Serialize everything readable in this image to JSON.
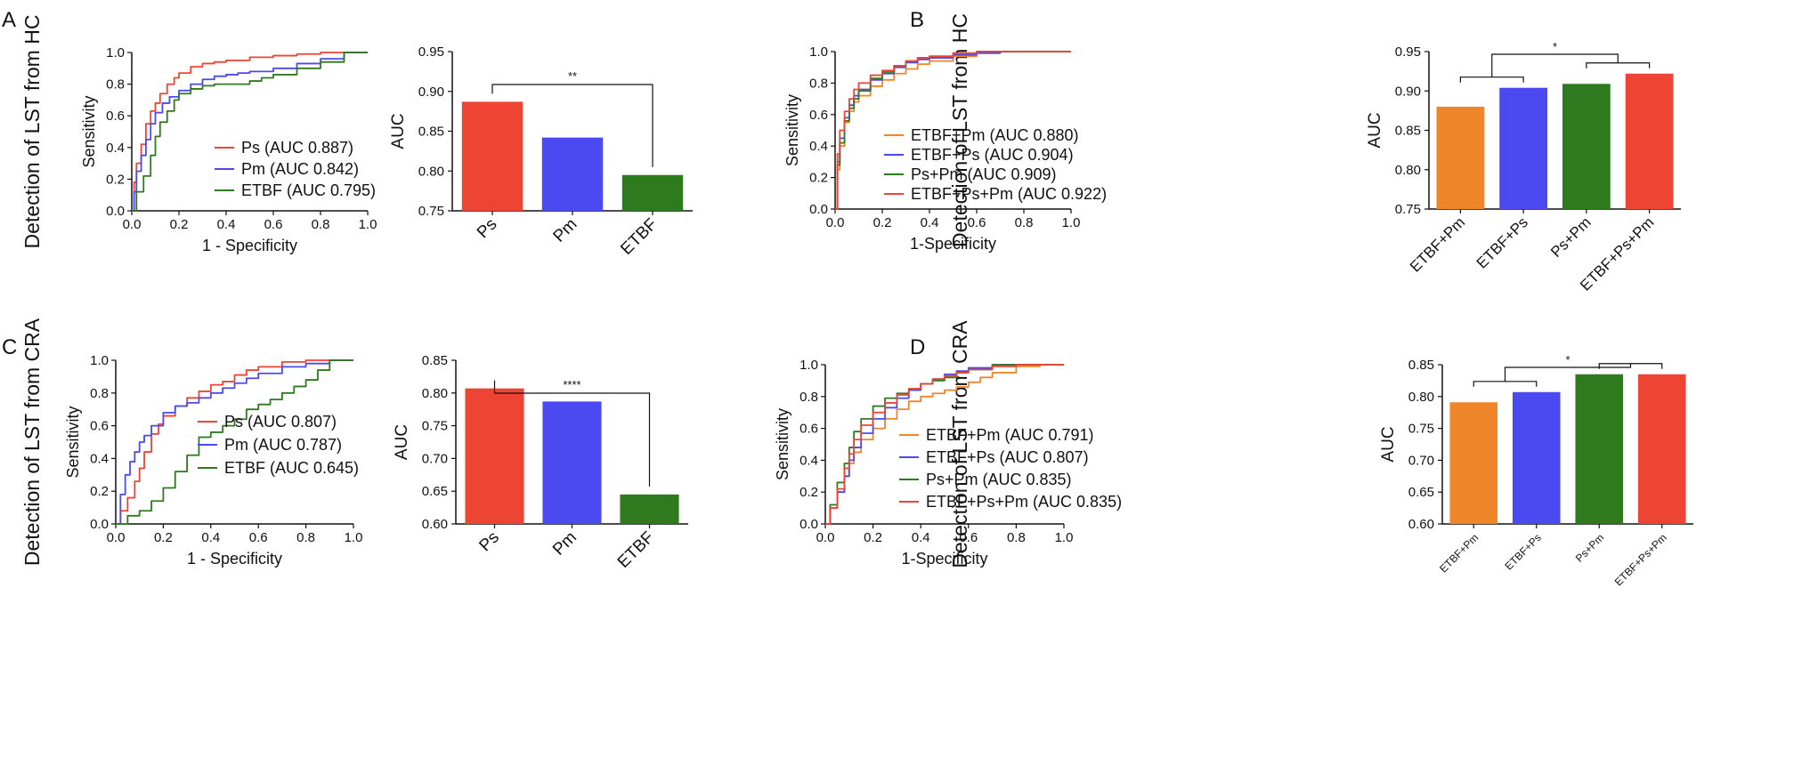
{
  "panels": [
    {
      "label": "A",
      "row_title": "Detection of LST from HC",
      "roc": {
        "type": "line",
        "xlabel": "1 - Specificity",
        "ylabel": "Sensitivity",
        "xlim": [
          0,
          1
        ],
        "ylim": [
          0,
          1
        ],
        "ticks": [
          "0.0",
          "0.2",
          "0.4",
          "0.6",
          "0.8",
          "1.0"
        ],
        "series": [
          {
            "name": "Ps (AUC 0.887)",
            "color": "#ee4433",
            "x": [
              0,
              0.01,
              0.02,
              0.04,
              0.06,
              0.08,
              0.1,
              0.12,
              0.15,
              0.18,
              0.2,
              0.25,
              0.3,
              0.35,
              0.4,
              0.5,
              0.6,
              0.7,
              0.8,
              0.9,
              1
            ],
            "y": [
              0,
              0.18,
              0.3,
              0.42,
              0.55,
              0.63,
              0.68,
              0.74,
              0.8,
              0.84,
              0.87,
              0.91,
              0.93,
              0.94,
              0.95,
              0.97,
              0.98,
              0.99,
              1,
              1,
              1
            ]
          },
          {
            "name": "Pm (AUC 0.842)",
            "color": "#4a4af0",
            "x": [
              0,
              0.01,
              0.02,
              0.04,
              0.06,
              0.08,
              0.1,
              0.13,
              0.16,
              0.2,
              0.25,
              0.3,
              0.35,
              0.4,
              0.45,
              0.5,
              0.6,
              0.7,
              0.8,
              0.9,
              1
            ],
            "y": [
              0,
              0.12,
              0.25,
              0.35,
              0.45,
              0.55,
              0.62,
              0.68,
              0.72,
              0.76,
              0.8,
              0.83,
              0.85,
              0.86,
              0.87,
              0.88,
              0.9,
              0.93,
              0.96,
              1,
              1
            ]
          },
          {
            "name": "ETBF (AUC 0.795)",
            "color": "#2f7a1f",
            "x": [
              0,
              0.02,
              0.05,
              0.08,
              0.1,
              0.12,
              0.15,
              0.18,
              0.2,
              0.25,
              0.3,
              0.35,
              0.4,
              0.45,
              0.5,
              0.55,
              0.6,
              0.7,
              0.8,
              0.9,
              1
            ],
            "y": [
              0,
              0.12,
              0.22,
              0.35,
              0.47,
              0.56,
              0.63,
              0.7,
              0.74,
              0.77,
              0.79,
              0.8,
              0.8,
              0.8,
              0.82,
              0.84,
              0.86,
              0.9,
              0.94,
              1,
              1
            ]
          }
        ]
      },
      "bar": {
        "type": "bar",
        "ylabel": "AUC",
        "ylim": [
          0.75,
          0.95
        ],
        "yticks": [
          "0.75",
          "0.80",
          "0.85",
          "0.90",
          "0.95"
        ],
        "categories": [
          "Ps",
          "Pm",
          "ETBF"
        ],
        "values": [
          0.887,
          0.842,
          0.795
        ],
        "colors": [
          "#ee4433",
          "#4a4af0",
          "#2f7a1f"
        ],
        "significance": [
          {
            "from": 0,
            "to": 2,
            "label": "**"
          }
        ]
      }
    },
    {
      "label": "B",
      "row_title": "Detection of LST from HC",
      "roc": {
        "type": "line",
        "xlabel": "1-Specificity",
        "ylabel": "Sensitivity",
        "xlim": [
          0,
          1
        ],
        "ylim": [
          0,
          1
        ],
        "ticks": [
          "0.0",
          "0.2",
          "0.4",
          "0.6",
          "0.8",
          "1.0"
        ],
        "series": [
          {
            "name": "ETBF+Pm (AUC 0.880)",
            "color": "#f0862a",
            "x": [
              0,
              0.01,
              0.02,
              0.04,
              0.06,
              0.08,
              0.1,
              0.15,
              0.2,
              0.25,
              0.3,
              0.35,
              0.4,
              0.5,
              0.6,
              0.7,
              0.8,
              0.9,
              1
            ],
            "y": [
              0,
              0.25,
              0.4,
              0.55,
              0.62,
              0.68,
              0.72,
              0.78,
              0.82,
              0.86,
              0.89,
              0.92,
              0.94,
              0.97,
              0.99,
              1,
              1,
              1,
              1
            ]
          },
          {
            "name": "ETBF+Ps (AUC 0.904)",
            "color": "#4a4af0",
            "x": [
              0,
              0.01,
              0.02,
              0.04,
              0.06,
              0.08,
              0.1,
              0.15,
              0.2,
              0.25,
              0.3,
              0.35,
              0.4,
              0.5,
              0.6,
              0.7,
              0.8,
              0.9,
              1
            ],
            "y": [
              0,
              0.3,
              0.45,
              0.58,
              0.66,
              0.72,
              0.76,
              0.82,
              0.86,
              0.9,
              0.93,
              0.95,
              0.96,
              0.98,
              0.99,
              1,
              1,
              1,
              1
            ]
          },
          {
            "name": "Ps+Pm (AUC 0.909)",
            "color": "#2f7a1f",
            "x": [
              0,
              0.01,
              0.02,
              0.04,
              0.06,
              0.08,
              0.1,
              0.15,
              0.2,
              0.25,
              0.3,
              0.35,
              0.4,
              0.5,
              0.6,
              0.7,
              0.8,
              0.9,
              1
            ],
            "y": [
              0,
              0.28,
              0.42,
              0.56,
              0.64,
              0.7,
              0.75,
              0.83,
              0.87,
              0.91,
              0.94,
              0.96,
              0.97,
              0.99,
              1,
              1,
              1,
              1,
              1
            ]
          },
          {
            "name": "ETBF+Ps+Pm (AUC 0.922)",
            "color": "#ee4433",
            "x": [
              0,
              0.01,
              0.02,
              0.04,
              0.06,
              0.08,
              0.1,
              0.15,
              0.2,
              0.25,
              0.3,
              0.35,
              0.4,
              0.5,
              0.6,
              0.7,
              0.8,
              0.9,
              1
            ],
            "y": [
              0,
              0.35,
              0.5,
              0.62,
              0.7,
              0.76,
              0.8,
              0.85,
              0.88,
              0.91,
              0.94,
              0.96,
              0.97,
              0.99,
              1,
              1,
              1,
              1,
              1
            ]
          }
        ]
      },
      "bar": {
        "type": "bar",
        "ylabel": "AUC",
        "ylim": [
          0.75,
          0.95
        ],
        "yticks": [
          "0.75",
          "0.80",
          "0.85",
          "0.90",
          "0.95"
        ],
        "categories": [
          "ETBF+Pm",
          "ETBF+Ps",
          "Ps+Pm",
          "ETBF+Ps+Pm"
        ],
        "values": [
          0.88,
          0.904,
          0.909,
          0.922
        ],
        "colors": [
          "#f0862a",
          "#4a4af0",
          "#2f7a1f",
          "#ee4433"
        ],
        "significance": [
          {
            "label": "*"
          }
        ]
      }
    },
    {
      "label": "C",
      "row_title": "Detection of LST from CRA",
      "roc": {
        "type": "line",
        "xlabel": "1 - Specificity",
        "ylabel": "Sensitivity",
        "xlim": [
          0,
          1
        ],
        "ylim": [
          0,
          1
        ],
        "ticks": [
          "0.0",
          "0.2",
          "0.4",
          "0.6",
          "0.8",
          "1.0"
        ],
        "series": [
          {
            "name": "Ps (AUC 0.807)",
            "color": "#ee4433",
            "x": [
              0,
              0.02,
              0.05,
              0.08,
              0.1,
              0.12,
              0.15,
              0.18,
              0.2,
              0.25,
              0.3,
              0.35,
              0.4,
              0.45,
              0.5,
              0.55,
              0.6,
              0.7,
              0.8,
              0.9,
              1
            ],
            "y": [
              0,
              0.08,
              0.16,
              0.26,
              0.34,
              0.44,
              0.55,
              0.61,
              0.66,
              0.72,
              0.77,
              0.81,
              0.85,
              0.87,
              0.91,
              0.94,
              0.96,
              0.99,
              1,
              1,
              1
            ]
          },
          {
            "name": "Pm (AUC 0.787)",
            "color": "#4a4af0",
            "x": [
              0,
              0.02,
              0.04,
              0.06,
              0.08,
              0.1,
              0.12,
              0.15,
              0.2,
              0.25,
              0.3,
              0.35,
              0.4,
              0.45,
              0.5,
              0.55,
              0.6,
              0.7,
              0.8,
              0.9,
              1
            ],
            "y": [
              0,
              0.18,
              0.3,
              0.38,
              0.44,
              0.5,
              0.54,
              0.6,
              0.68,
              0.72,
              0.74,
              0.77,
              0.8,
              0.83,
              0.86,
              0.89,
              0.92,
              0.96,
              0.98,
              1,
              1
            ]
          },
          {
            "name": "ETBF (AUC 0.645)",
            "color": "#2f7a1f",
            "x": [
              0,
              0.05,
              0.1,
              0.15,
              0.2,
              0.25,
              0.3,
              0.35,
              0.4,
              0.45,
              0.5,
              0.55,
              0.6,
              0.65,
              0.7,
              0.75,
              0.8,
              0.85,
              0.9,
              1
            ],
            "y": [
              0,
              0.05,
              0.08,
              0.14,
              0.22,
              0.32,
              0.42,
              0.53,
              0.56,
              0.6,
              0.64,
              0.7,
              0.73,
              0.76,
              0.8,
              0.84,
              0.88,
              0.94,
              1,
              1
            ]
          }
        ]
      },
      "bar": {
        "type": "bar",
        "ylabel": "AUC",
        "ylim": [
          0.6,
          0.85
        ],
        "yticks": [
          "0.60",
          "0.65",
          "0.70",
          "0.75",
          "0.80",
          "0.85"
        ],
        "categories": [
          "Ps",
          "Pm",
          "ETBF"
        ],
        "values": [
          0.807,
          0.787,
          0.645
        ],
        "colors": [
          "#ee4433",
          "#4a4af0",
          "#2f7a1f"
        ],
        "significance": [
          {
            "from": 0,
            "to": 2,
            "label": "****"
          }
        ]
      }
    },
    {
      "label": "D",
      "row_title": "Detection of LST from CRA",
      "roc": {
        "type": "line",
        "xlabel": "1-Specificity",
        "ylabel": "Sensitivity",
        "xlim": [
          0,
          1
        ],
        "ylim": [
          0,
          1
        ],
        "ticks": [
          "0.0",
          "0.2",
          "0.4",
          "0.6",
          "0.8",
          "1.0"
        ],
        "series": [
          {
            "name": "ETBF+Pm (AUC 0.791)",
            "color": "#f0862a",
            "x": [
              0,
              0.02,
              0.05,
              0.08,
              0.1,
              0.12,
              0.15,
              0.2,
              0.25,
              0.3,
              0.35,
              0.4,
              0.45,
              0.5,
              0.55,
              0.6,
              0.65,
              0.7,
              0.8,
              0.9,
              1
            ],
            "y": [
              0,
              0.1,
              0.2,
              0.3,
              0.38,
              0.45,
              0.53,
              0.6,
              0.66,
              0.72,
              0.77,
              0.8,
              0.82,
              0.84,
              0.86,
              0.89,
              0.92,
              0.95,
              0.99,
              1,
              1
            ]
          },
          {
            "name": "ETBF+Ps (AUC 0.807)",
            "color": "#4a4af0",
            "x": [
              0,
              0.02,
              0.05,
              0.08,
              0.1,
              0.12,
              0.15,
              0.2,
              0.25,
              0.3,
              0.35,
              0.4,
              0.45,
              0.5,
              0.55,
              0.6,
              0.7,
              0.8,
              0.9,
              1
            ],
            "y": [
              0,
              0.1,
              0.2,
              0.3,
              0.4,
              0.48,
              0.57,
              0.66,
              0.73,
              0.79,
              0.84,
              0.88,
              0.91,
              0.94,
              0.96,
              0.98,
              1,
              1,
              1,
              1
            ]
          },
          {
            "name": "Ps+Pm (AUC 0.835)",
            "color": "#2f7a1f",
            "x": [
              0,
              0.02,
              0.05,
              0.08,
              0.1,
              0.12,
              0.15,
              0.2,
              0.25,
              0.3,
              0.35,
              0.4,
              0.45,
              0.5,
              0.55,
              0.6,
              0.7,
              0.8,
              0.9,
              1
            ],
            "y": [
              0,
              0.12,
              0.26,
              0.38,
              0.48,
              0.58,
              0.66,
              0.74,
              0.79,
              0.82,
              0.85,
              0.88,
              0.9,
              0.92,
              0.95,
              0.97,
              1,
              1,
              1,
              1
            ]
          },
          {
            "name": "ETBF+Ps+Pm (AUC 0.835)",
            "color": "#ee4433",
            "x": [
              0,
              0.02,
              0.05,
              0.08,
              0.1,
              0.12,
              0.15,
              0.2,
              0.25,
              0.3,
              0.35,
              0.4,
              0.45,
              0.5,
              0.55,
              0.6,
              0.7,
              0.8,
              0.9,
              1
            ],
            "y": [
              0,
              0.1,
              0.22,
              0.35,
              0.44,
              0.53,
              0.62,
              0.7,
              0.76,
              0.81,
              0.85,
              0.88,
              0.91,
              0.93,
              0.95,
              0.97,
              0.99,
              1,
              1,
              1
            ]
          }
        ]
      },
      "bar": {
        "type": "bar",
        "ylabel": "AUC",
        "ylim": [
          0.6,
          0.85
        ],
        "yticks": [
          "0.60",
          "0.65",
          "0.70",
          "0.75",
          "0.80",
          "0.85"
        ],
        "categories": [
          "ETBF+Pm",
          "ETBF+Ps",
          "Ps+Pm",
          "ETBF+Ps+Pm"
        ],
        "values": [
          0.791,
          0.807,
          0.835,
          0.835
        ],
        "colors": [
          "#f0862a",
          "#4a4af0",
          "#2f7a1f",
          "#ee4433"
        ],
        "significance": [
          {
            "label": "*"
          }
        ]
      }
    }
  ]
}
